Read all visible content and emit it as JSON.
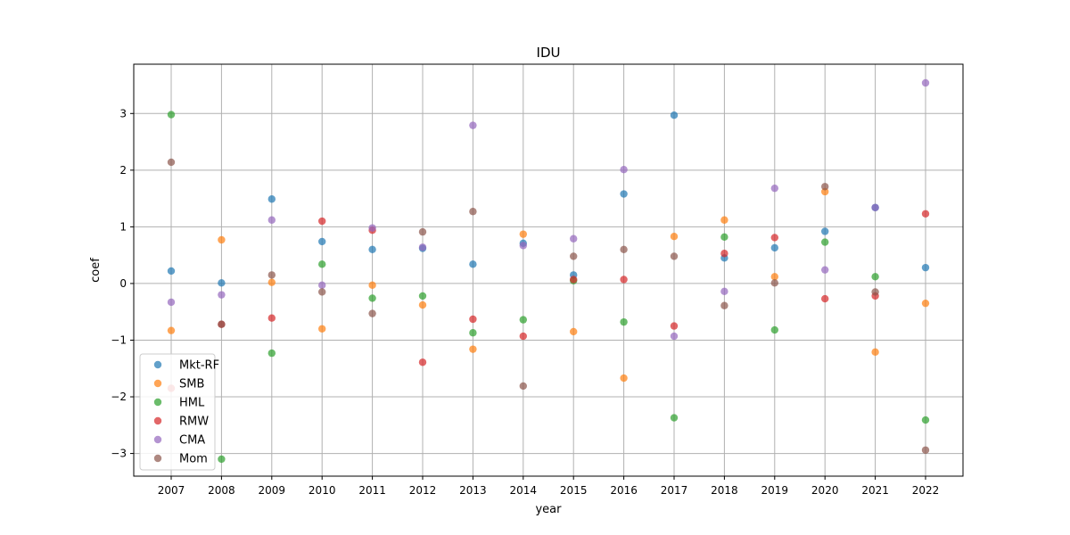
{
  "chart_data": {
    "type": "scatter",
    "title": "IDU",
    "xlabel": "year",
    "ylabel": "coef",
    "x": [
      "2007",
      "2008",
      "2009",
      "2010",
      "2011",
      "2012",
      "2013",
      "2014",
      "2015",
      "2016",
      "2017",
      "2018",
      "2019",
      "2020",
      "2021",
      "2022"
    ],
    "yticks": [
      -3,
      -2,
      -1,
      0,
      1,
      2,
      3
    ],
    "ylim": [
      -3.4,
      3.87
    ],
    "grid": true,
    "legend_position": "lower-left",
    "series": [
      {
        "name": "Mkt-RF",
        "color": "#1f77b4",
        "values": [
          0.22,
          0.01,
          1.49,
          0.74,
          0.6,
          0.62,
          0.34,
          0.71,
          0.15,
          1.58,
          2.97,
          0.45,
          0.63,
          0.92,
          1.34,
          0.28
        ]
      },
      {
        "name": "SMB",
        "color": "#ff7f0e",
        "values": [
          -0.83,
          0.77,
          0.02,
          -0.8,
          -0.03,
          -0.38,
          -1.16,
          0.87,
          -0.85,
          -1.67,
          0.83,
          1.12,
          0.12,
          1.62,
          -1.21,
          -0.35
        ]
      },
      {
        "name": "HML",
        "color": "#2ca02c",
        "values": [
          2.98,
          -3.1,
          -1.23,
          0.34,
          -0.26,
          -0.22,
          -0.87,
          -0.64,
          0.05,
          -0.68,
          -2.37,
          0.82,
          -0.82,
          0.73,
          0.12,
          -2.41
        ]
      },
      {
        "name": "RMW",
        "color": "#d62728",
        "values": [
          -1.85,
          -0.72,
          -0.61,
          1.1,
          0.94,
          -1.39,
          -0.63,
          -0.93,
          0.07,
          0.07,
          -0.75,
          0.53,
          0.81,
          -0.27,
          -0.22,
          1.23
        ]
      },
      {
        "name": "CMA",
        "color": "#9467bd",
        "values": [
          -0.33,
          -0.2,
          1.12,
          -0.03,
          0.98,
          0.64,
          2.79,
          0.67,
          0.79,
          2.01,
          -0.93,
          -0.14,
          1.68,
          0.24,
          1.34,
          3.54
        ]
      },
      {
        "name": "Mom",
        "color": "#8c564b",
        "values": [
          2.14,
          -0.72,
          0.15,
          -0.15,
          -0.53,
          0.91,
          1.27,
          -1.81,
          0.48,
          0.6,
          0.48,
          -0.39,
          0.01,
          1.71,
          -0.15,
          -2.94
        ]
      }
    ]
  }
}
